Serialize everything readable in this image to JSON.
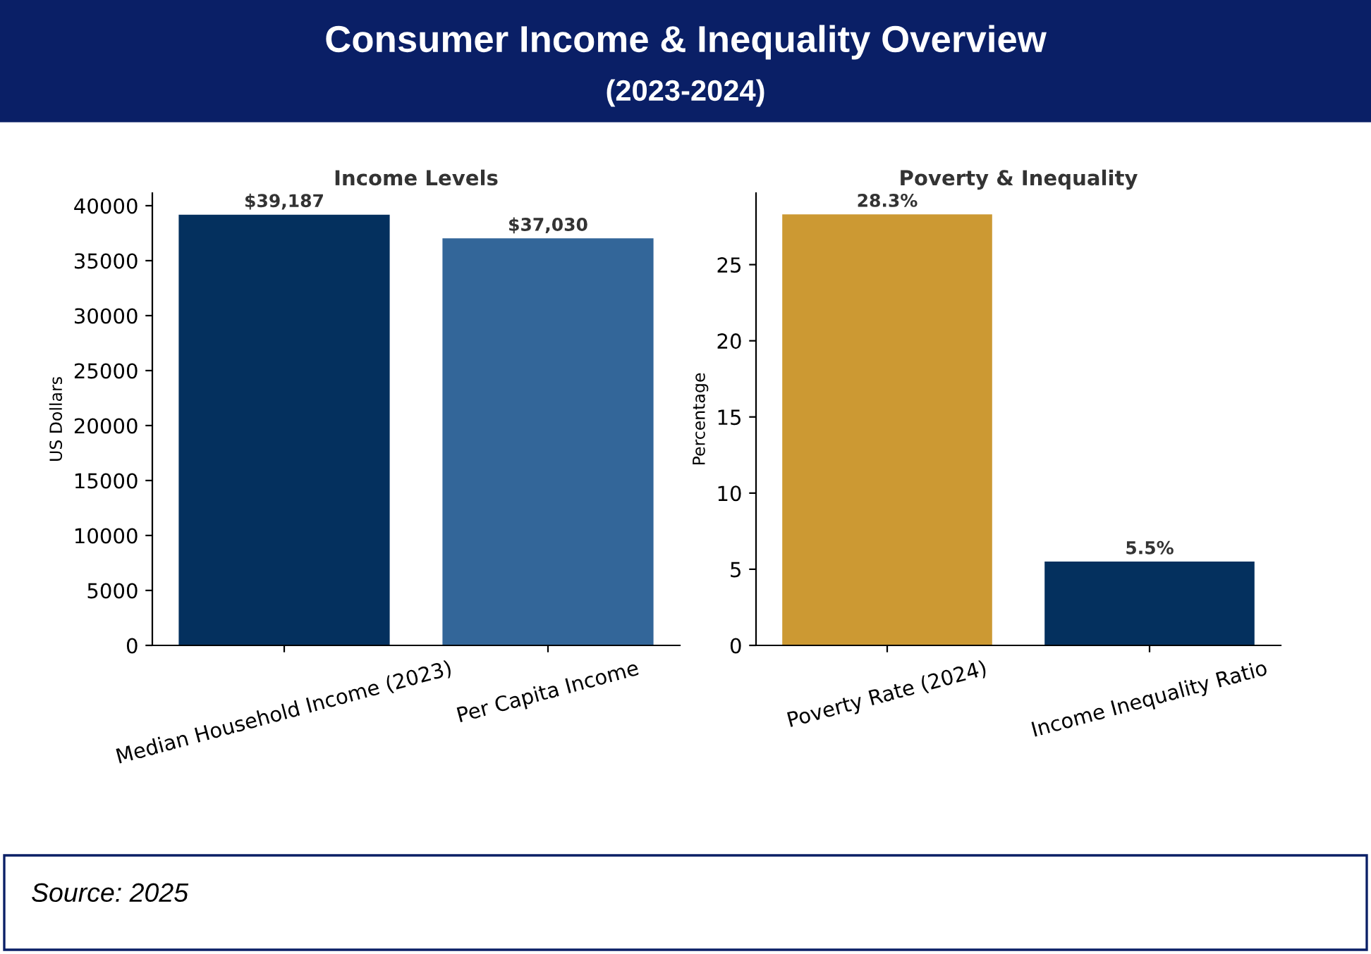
{
  "chart_data": [
    {
      "type": "bar",
      "title": "Income Levels",
      "ylabel": "US Dollars",
      "categories": [
        "Median Household Income (2023)",
        "Per Capita Income"
      ],
      "values": [
        39187,
        37030
      ],
      "colors": [
        "#04305e",
        "#336699"
      ],
      "value_labels": [
        "$39,187",
        "$37,030"
      ],
      "ylim": [
        0,
        41150
      ],
      "yticks": [
        0,
        5000,
        10000,
        15000,
        20000,
        25000,
        30000,
        35000,
        40000
      ],
      "grid": false
    },
    {
      "type": "bar",
      "title": "Poverty & Inequality",
      "ylabel": "Percentage",
      "categories": [
        "Poverty Rate (2024)",
        "Income Inequality Ratio"
      ],
      "values": [
        28.3,
        5.5
      ],
      "colors": [
        "#cc9933",
        "#04305e"
      ],
      "value_labels": [
        "28.3%",
        "5.5%"
      ],
      "ylim": [
        0,
        29.7
      ],
      "yticks": [
        0,
        5,
        10,
        15,
        20,
        25
      ],
      "grid": false
    },
    {
      "type": "other",
      "title": "Consumer Income & Inequality Overview",
      "subtitle": "(2023-2024)",
      "annotations": [
        "Source: 2025"
      ]
    }
  ]
}
